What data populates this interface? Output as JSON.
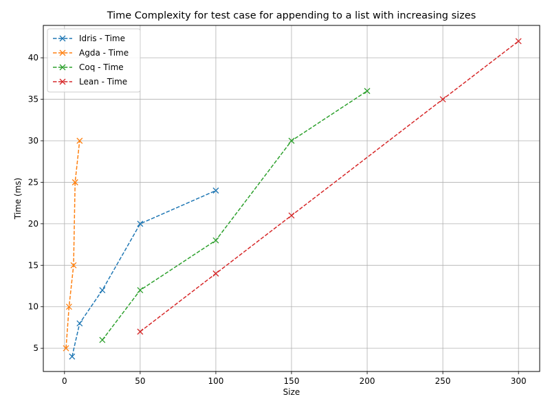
{
  "chart_data": {
    "type": "line",
    "title": "Time Complexity for test case for appending to a list with increasing sizes",
    "xlabel": "Size",
    "ylabel": "Time (ms)",
    "xlim": [
      -14,
      314
    ],
    "ylim": [
      2.2,
      43.9
    ],
    "xticks": [
      0,
      50,
      100,
      150,
      200,
      250,
      300
    ],
    "yticks": [
      5,
      10,
      15,
      20,
      25,
      30,
      35,
      40
    ],
    "grid": true,
    "legend_position": "upper-left",
    "line_style": "dashed",
    "marker": "x",
    "series": [
      {
        "name": "Idris - Time",
        "color": "#1f77b4",
        "x": [
          5,
          10,
          25,
          50,
          100
        ],
        "y": [
          4,
          8,
          12,
          20,
          24
        ]
      },
      {
        "name": "Agda - Time",
        "color": "#ff7f0e",
        "x": [
          1,
          3,
          6,
          7,
          7,
          10
        ],
        "y": [
          5,
          10,
          15,
          25,
          25,
          30
        ]
      },
      {
        "name": "Coq - Time",
        "color": "#2ca02c",
        "x": [
          25,
          50,
          100,
          150,
          200
        ],
        "y": [
          6,
          12,
          18,
          30,
          36
        ]
      },
      {
        "name": "Lean - Time",
        "color": "#d62728",
        "x": [
          50,
          100,
          150,
          250,
          300
        ],
        "y": [
          7,
          14,
          21,
          35,
          42
        ]
      }
    ]
  }
}
